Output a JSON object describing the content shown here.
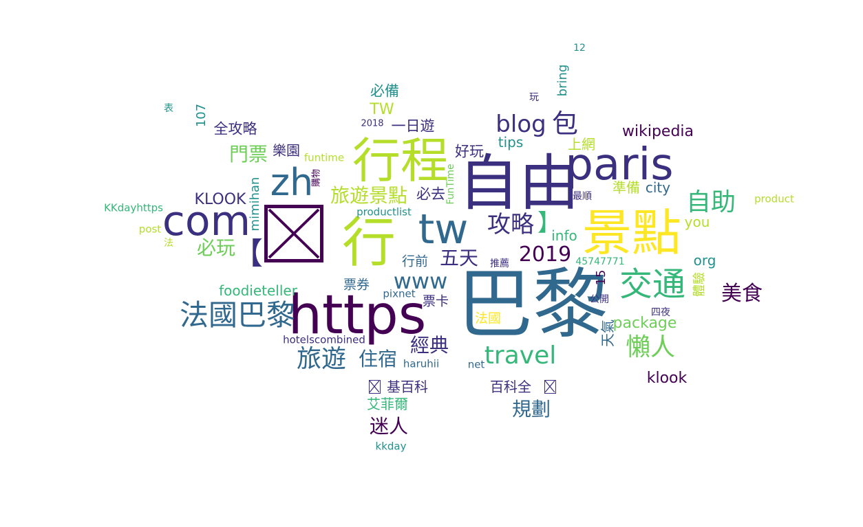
{
  "colors": {
    "dark_purple": "#440154",
    "indigo": "#3b2f7f",
    "slate_blue": "#31688e",
    "teal": "#26828e",
    "green_teal": "#21918c",
    "green": "#35b779",
    "light_green": "#6ece58",
    "yellow_green": "#b5de2b",
    "yellow": "#fde725"
  },
  "words": {
    "w001": "巴黎",
    "w002": "自由",
    "w003": "景點",
    "w004": "行程",
    "w005": "https",
    "w006": "paris",
    "w007": "行",
    "w008": "com",
    "w009": "tw",
    "w010": "zh",
    "w011": "交通",
    "w012": "法國巴黎",
    "w013": "blog",
    "w014": "包",
    "w015": "自助",
    "w016": "攻略",
    "w017": "旅遊",
    "w018": "travel",
    "w019": "懶人",
    "w020": "www",
    "w021": "2019",
    "w022": "美食",
    "w023": "旅遊景點",
    "w024": "必玩",
    "w025": "五天",
    "w026": "經典",
    "w027": "住宿",
    "w028": "迷人",
    "w029": "規劃",
    "w030": "門票",
    "w031": "KLOOK",
    "w032": "wikipedia",
    "w033": "klook",
    "w034": "foodieteller",
    "w035": "package",
    "w036": "全攻略",
    "w037": "一日遊",
    "w038": "樂園",
    "w039": "必備",
    "w040": "TW",
    "w041": "好玩",
    "w042": "必去",
    "w043": "上網",
    "w044": "準備",
    "w045": "city",
    "w046": "tips",
    "w047": "info",
    "w048": "you",
    "w049": "org",
    "w050": "行前",
    "w051": "票券",
    "w052": "票卡",
    "w053": "法國",
    "w054": "艾菲爾",
    "w055": "百科全",
    "w056": "基百科",
    "w057": "天氣",
    "w058": "體驗",
    "w059": "mimihan",
    "w060": "bring",
    "w061": "107",
    "w062": "15",
    "w063": "FunTime",
    "w064": "funtime",
    "w065": "pixnet",
    "w066": "productlist",
    "w067": "hotelscombined",
    "w068": "haruhii",
    "w069": "net",
    "w070": "KKdayhttps",
    "w071": "post",
    "w072": "product",
    "w073": "kkday",
    "w074": "45747771",
    "w075": "推薦",
    "w076": "最順",
    "w077": "公開",
    "w078": "四夜",
    "w079": "購物",
    "w080": "2018",
    "w081": "12",
    "w082": "玩",
    "w083": "表",
    "w084": "法",
    "w085": "【",
    "w086": "】"
  }
}
